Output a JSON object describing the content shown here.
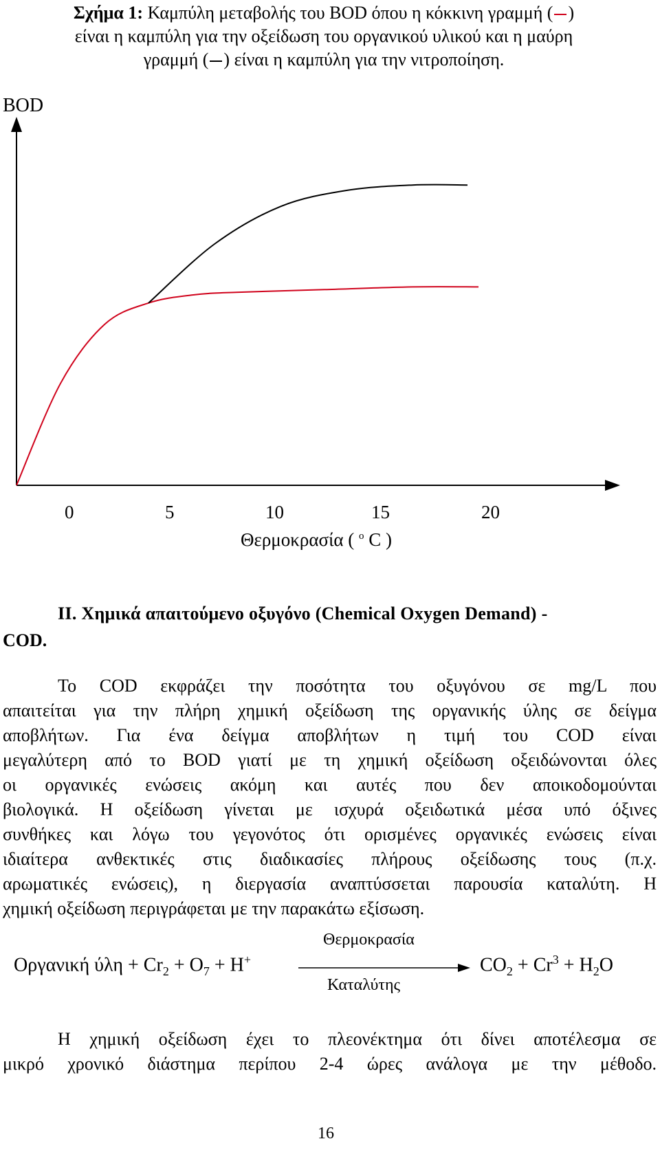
{
  "caption": {
    "prefix": "Σχήμα 1:",
    "part1": " Καμπύλη μεταβολής του BOD όπου η κόκκινη γραμμή (",
    "part2": ")",
    "part3": "είναι η καμπύλη για την οξείδωση του οργανικού υλικού και η μαύρη",
    "part4": "γραμμή (",
    "part5": ") είναι η καμπύλη για την νιτροποίηση."
  },
  "chart_data": {
    "type": "line",
    "ylabel": "BOD",
    "xlabel_main": "Θερμοκρασία (",
    "xlabel_sup": "o",
    "xlabel_unit": "C )",
    "x_ticks": [
      "0",
      "5",
      "10",
      "15",
      "20"
    ],
    "x_range": [
      0,
      24
    ],
    "series": [
      {
        "color": "#d0021b",
        "x": [
          0,
          2,
          4,
          6,
          8,
          10,
          14,
          18,
          21
        ],
        "y": [
          0,
          0.38,
          0.6,
          0.68,
          0.71,
          0.72,
          0.73,
          0.74,
          0.74
        ]
      },
      {
        "color": "#000000",
        "x": [
          6,
          9,
          12,
          15,
          18,
          20.5
        ],
        "y": [
          0.68,
          0.9,
          1.04,
          1.1,
          1.12,
          1.12
        ]
      }
    ]
  },
  "section": {
    "title_line1": "ΙΙ. Χημικά απαιτούμενο οξυγόνο (Chemical Oxygen Demand) -",
    "title_line2": "COD."
  },
  "paragraph1": {
    "lines": [
      "Το COD εκφράζει την ποσότητα του οξυγόνου σε mg/L που",
      "απαιτείται για την πλήρη χημική οξείδωση της οργανικής ύλης σε δείγμα",
      "αποβλήτων. Για ένα δείγμα αποβλήτων η τιμή του COD είναι",
      "μεγαλύτερη από το BOD γιατί με τη χημική οξείδωση οξειδώνονται όλες",
      "οι οργανικές ενώσεις ακόμη και αυτές που δεν αποικοδομούνται",
      "βιολογικά. Η οξείδωση γίνεται με ισχυρά οξειδωτικά μέσα υπό όξινες",
      "συνθήκες και λόγω του γεγονότος ότι ορισμένες οργανικές ενώσεις είναι",
      "ιδιαίτερα ανθεκτικές στις διαδικασίες πλήρους οξείδωσης τους (π.χ.",
      "αρωματικές ενώσεις), η διεργασία αναπτύσσεται παρουσία καταλύτη. Η",
      "χημική οξείδωση περιγράφεται με την παρακάτω εξίσωση."
    ]
  },
  "equation": {
    "above": "Θερμοκρασία",
    "below": "Καταλύτης",
    "left_text1": "Οργανική ύλη + Cr",
    "left_sub1": "2",
    "left_text2": " + O",
    "left_sub2": "7",
    "left_text3": " + H",
    "left_sup": "+",
    "right_text1": "CO",
    "right_sub1": "2",
    "right_text2": " + Cr",
    "right_sup": "3",
    "right_text3": " + H",
    "right_sub2": "2",
    "right_text4": "O"
  },
  "paragraph2": {
    "lines": [
      "Η χημική οξείδωση έχει το πλεονέκτημα ότι δίνει αποτέλεσμα σε",
      "μικρό χρονικό διάστημα περίπου 2-4 ώρες ανάλογα με την μέθοδο."
    ]
  },
  "page_number": "16"
}
